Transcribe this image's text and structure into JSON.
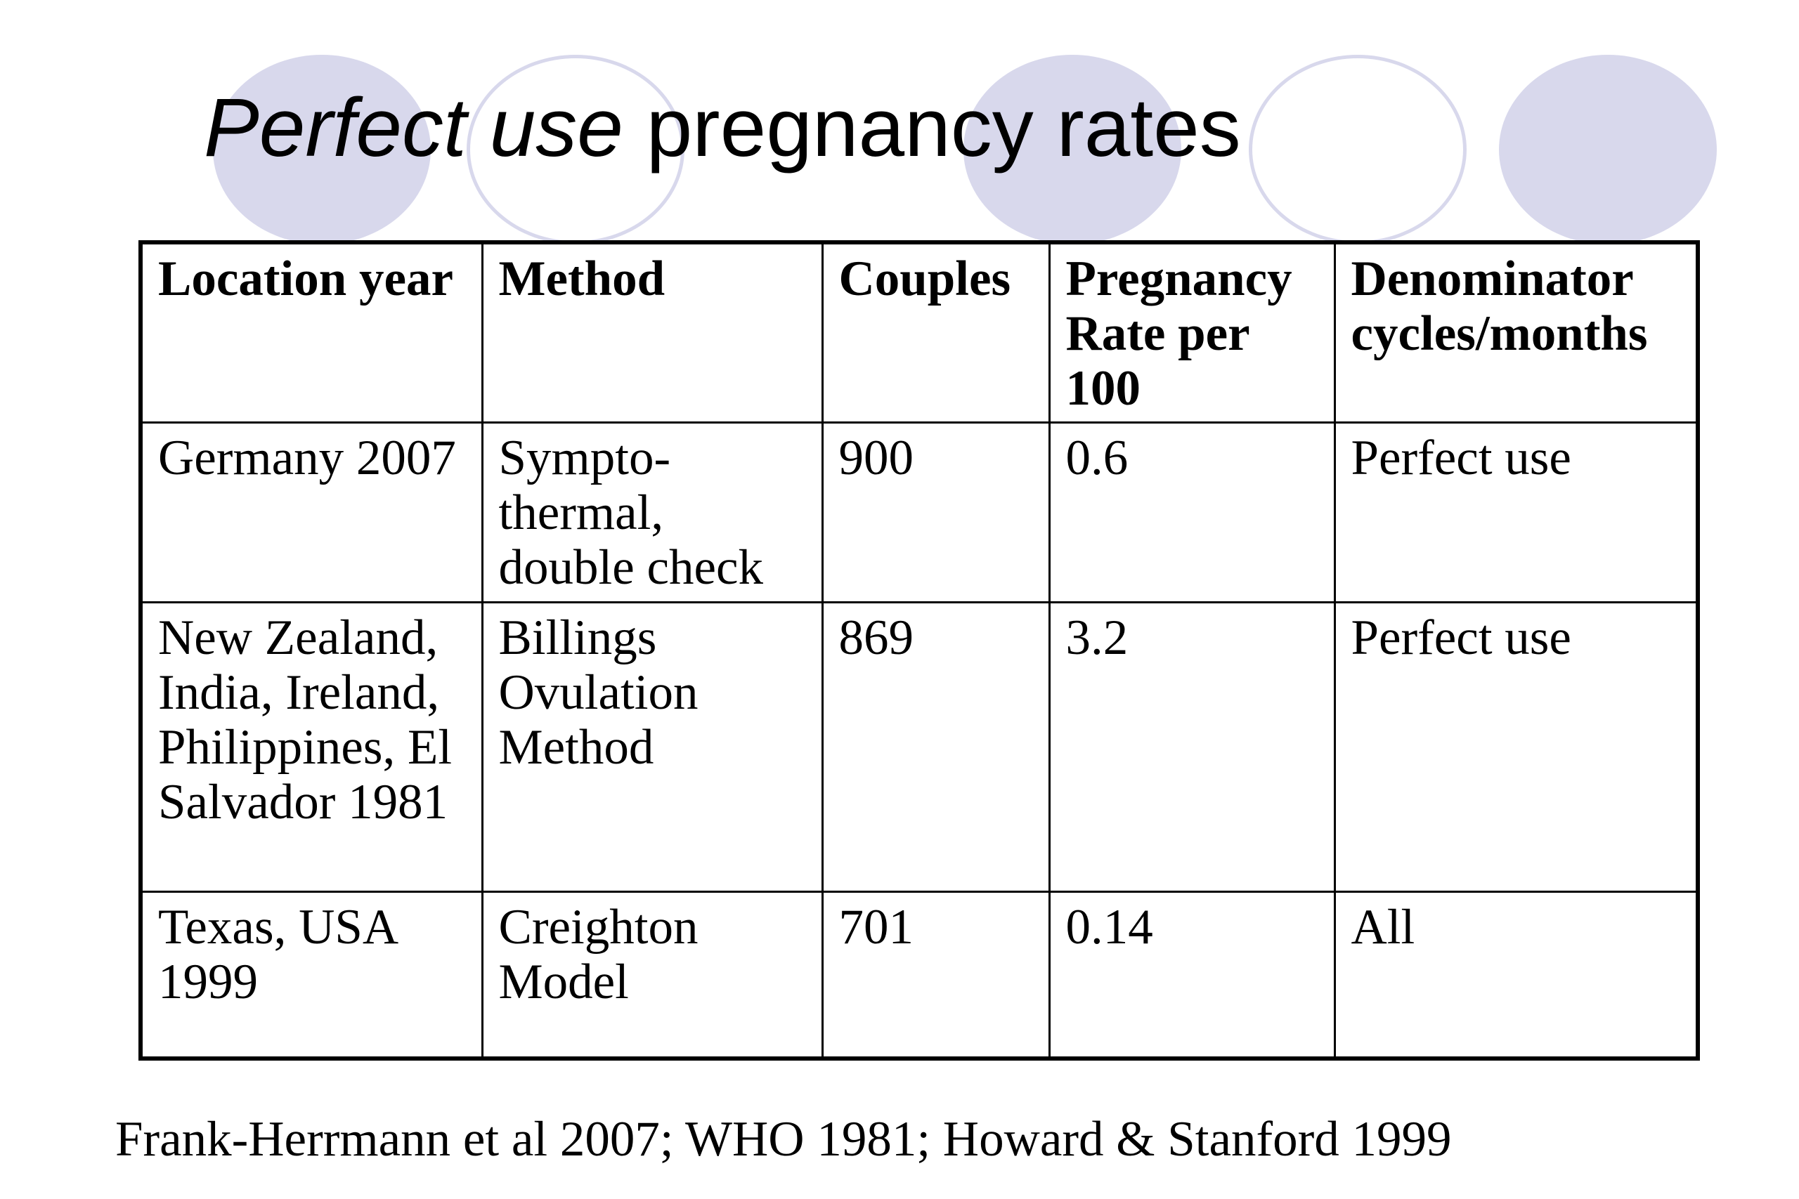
{
  "slide": {
    "title_italic": "Perfect use",
    "title_rest": " pregnancy rates",
    "table": {
      "headers": [
        "Location year",
        "Method",
        "Couples",
        "Pregnancy Rate per 100",
        "Denominator cycles/months"
      ],
      "rows": [
        [
          "Germany 2007",
          "Sympto-thermal, double check",
          "900",
          "0.6",
          "Perfect use"
        ],
        [
          "New Zealand, India, Ireland, Philippines, El Salvador 1981",
          "Billings Ovulation Method",
          "869",
          "3.2",
          "Perfect use"
        ],
        [
          "Texas, USA 1999",
          "Creighton Model",
          "701",
          "0.14",
          "All"
        ]
      ]
    },
    "citation": "Frank-Herrmann et al 2007; WHO 1981; Howard & Stanford 1999",
    "colors": {
      "decor_circle": "#d8d8ec",
      "text": "#000000",
      "background": "#ffffff"
    }
  }
}
